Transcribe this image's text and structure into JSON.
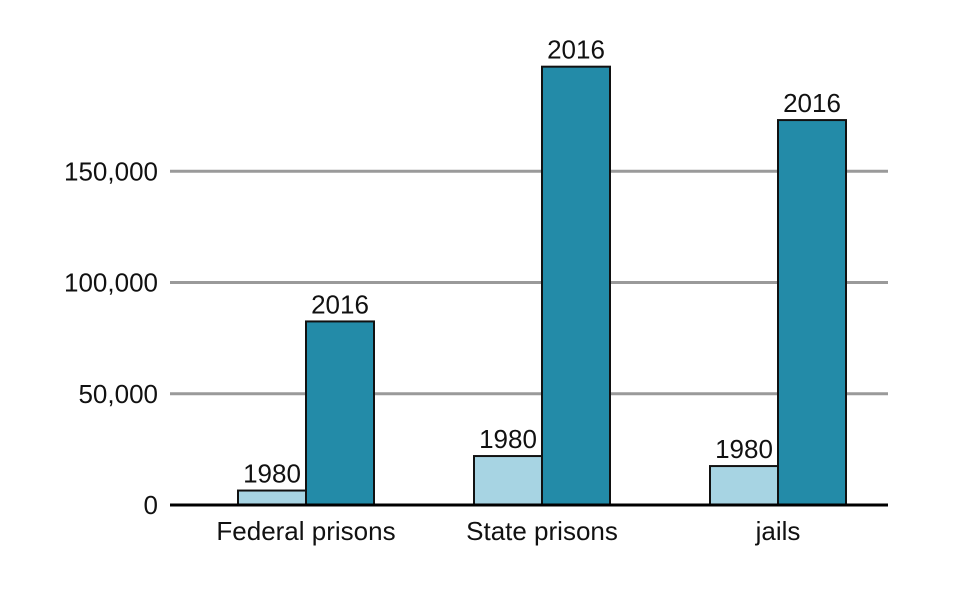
{
  "chart_data": {
    "type": "bar",
    "title": "",
    "xlabel": "",
    "ylabel": "",
    "categories": [
      "Federal prisons",
      "State prisons",
      "jails"
    ],
    "series": [
      {
        "name": "1980",
        "values": [
          6500,
          22000,
          17500
        ],
        "color": "#a7d4e3"
      },
      {
        "name": "2016",
        "values": [
          82500,
          197000,
          173000
        ],
        "color": "#238ba8"
      }
    ],
    "ylim": [
      0,
      200000
    ],
    "y_ticks": [
      0,
      50000,
      100000,
      150000
    ],
    "y_tick_labels": [
      "0",
      "50,000",
      "100,000",
      "150,000"
    ],
    "grid": true,
    "legend": "none",
    "grid_color": "#9a9a9a",
    "axis_color": "#000000"
  }
}
